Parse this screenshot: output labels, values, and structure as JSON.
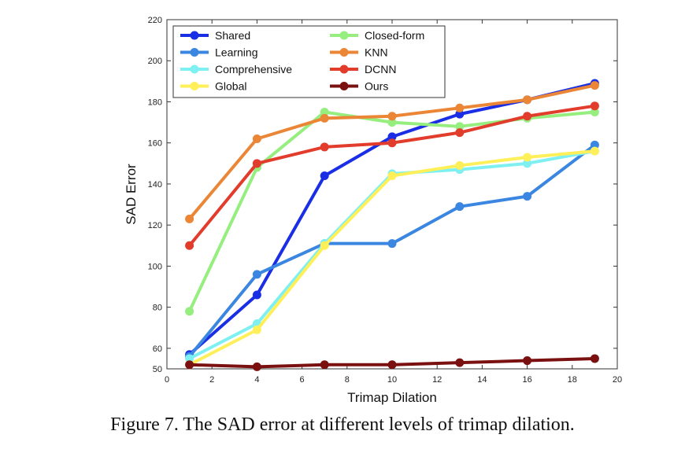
{
  "caption": "Figure 7. The SAD error at different levels of trimap dilation.",
  "chart_data": {
    "type": "line",
    "xlabel": "Trimap Dilation",
    "ylabel": "SAD Error",
    "xlim": [
      0,
      20
    ],
    "ylim": [
      50,
      220
    ],
    "xticks": [
      0,
      2,
      4,
      6,
      8,
      10,
      12,
      14,
      16,
      18,
      20
    ],
    "yticks": [
      50,
      60,
      80,
      100,
      120,
      140,
      160,
      180,
      200,
      220
    ],
    "grid": false,
    "legend_position": "top-left",
    "x": [
      1,
      4,
      7,
      10,
      13,
      16,
      19
    ],
    "series": [
      {
        "name": "Shared",
        "color": "#1a2ee6",
        "values": [
          57,
          86,
          144,
          163,
          174,
          181,
          189
        ]
      },
      {
        "name": "Learning",
        "color": "#3a86e0",
        "values": [
          56,
          96,
          111,
          111,
          129,
          134,
          159
        ]
      },
      {
        "name": "Comprehensive",
        "color": "#7ff0f2",
        "values": [
          55,
          72,
          111,
          145,
          147,
          150,
          156
        ]
      },
      {
        "name": "Global",
        "color": "#fff05a",
        "values": [
          52,
          69,
          110,
          144,
          149,
          153,
          156
        ]
      },
      {
        "name": "Closed-form",
        "color": "#96ee7e",
        "values": [
          78,
          148,
          175,
          170,
          168,
          172,
          175
        ]
      },
      {
        "name": "KNN",
        "color": "#ea8636",
        "values": [
          123,
          162,
          172,
          173,
          177,
          181,
          188
        ]
      },
      {
        "name": "DCNN",
        "color": "#e23c2c",
        "values": [
          110,
          150,
          158,
          160,
          165,
          173,
          178
        ]
      },
      {
        "name": "Ours",
        "color": "#7a1010",
        "values": [
          52,
          51,
          52,
          52,
          53,
          54,
          55
        ]
      }
    ]
  }
}
